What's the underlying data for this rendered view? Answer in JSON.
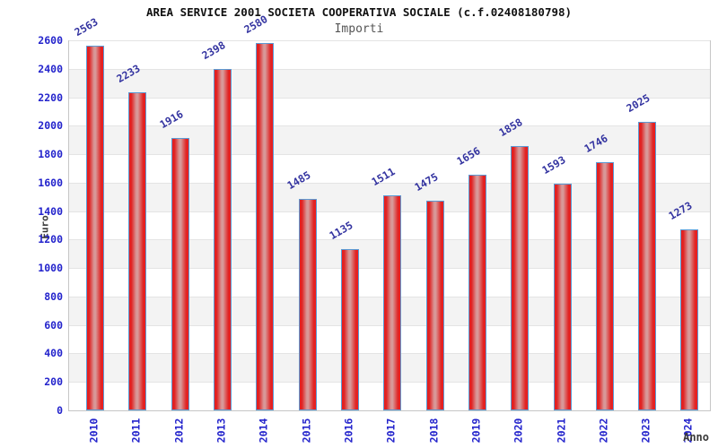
{
  "chart_data": {
    "type": "bar",
    "title": "AREA SERVICE 2001 SOCIETA COOPERATIVA SOCIALE (c.f.02408180798)",
    "subtitle": "Importi",
    "xlabel": "Anno",
    "ylabel": "Euro",
    "categories": [
      "2010",
      "2011",
      "2012",
      "2013",
      "2014",
      "2015",
      "2016",
      "2017",
      "2018",
      "2019",
      "2020",
      "2021",
      "2022",
      "2023",
      "2024"
    ],
    "values": [
      2563,
      2233,
      1916,
      2398,
      2580,
      1485,
      1135,
      1511,
      1475,
      1656,
      1858,
      1593,
      1746,
      2025,
      1273
    ],
    "ylim": [
      0,
      2600
    ],
    "y_ticks": [
      0,
      200,
      400,
      600,
      800,
      1000,
      1200,
      1400,
      1600,
      1800,
      2000,
      2200,
      2400,
      2600
    ],
    "grid": "horizontal gridlines with alternating white/gray bands",
    "legend": "none",
    "bar_labels_shown": true,
    "colors": {
      "bar_fill": "#e62020",
      "bar_fill_highlight": "#d89898",
      "bar_border": "#5b9bd5",
      "axis_tick_text": "#2424cc",
      "value_label_text": "#3333a0",
      "axis_title_text": "#3a3a3a",
      "subtitle_text": "#555555",
      "band_gray": "#f3f3f3",
      "gridline": "#e4e4e4",
      "plot_border": "#c6c6c6"
    }
  }
}
